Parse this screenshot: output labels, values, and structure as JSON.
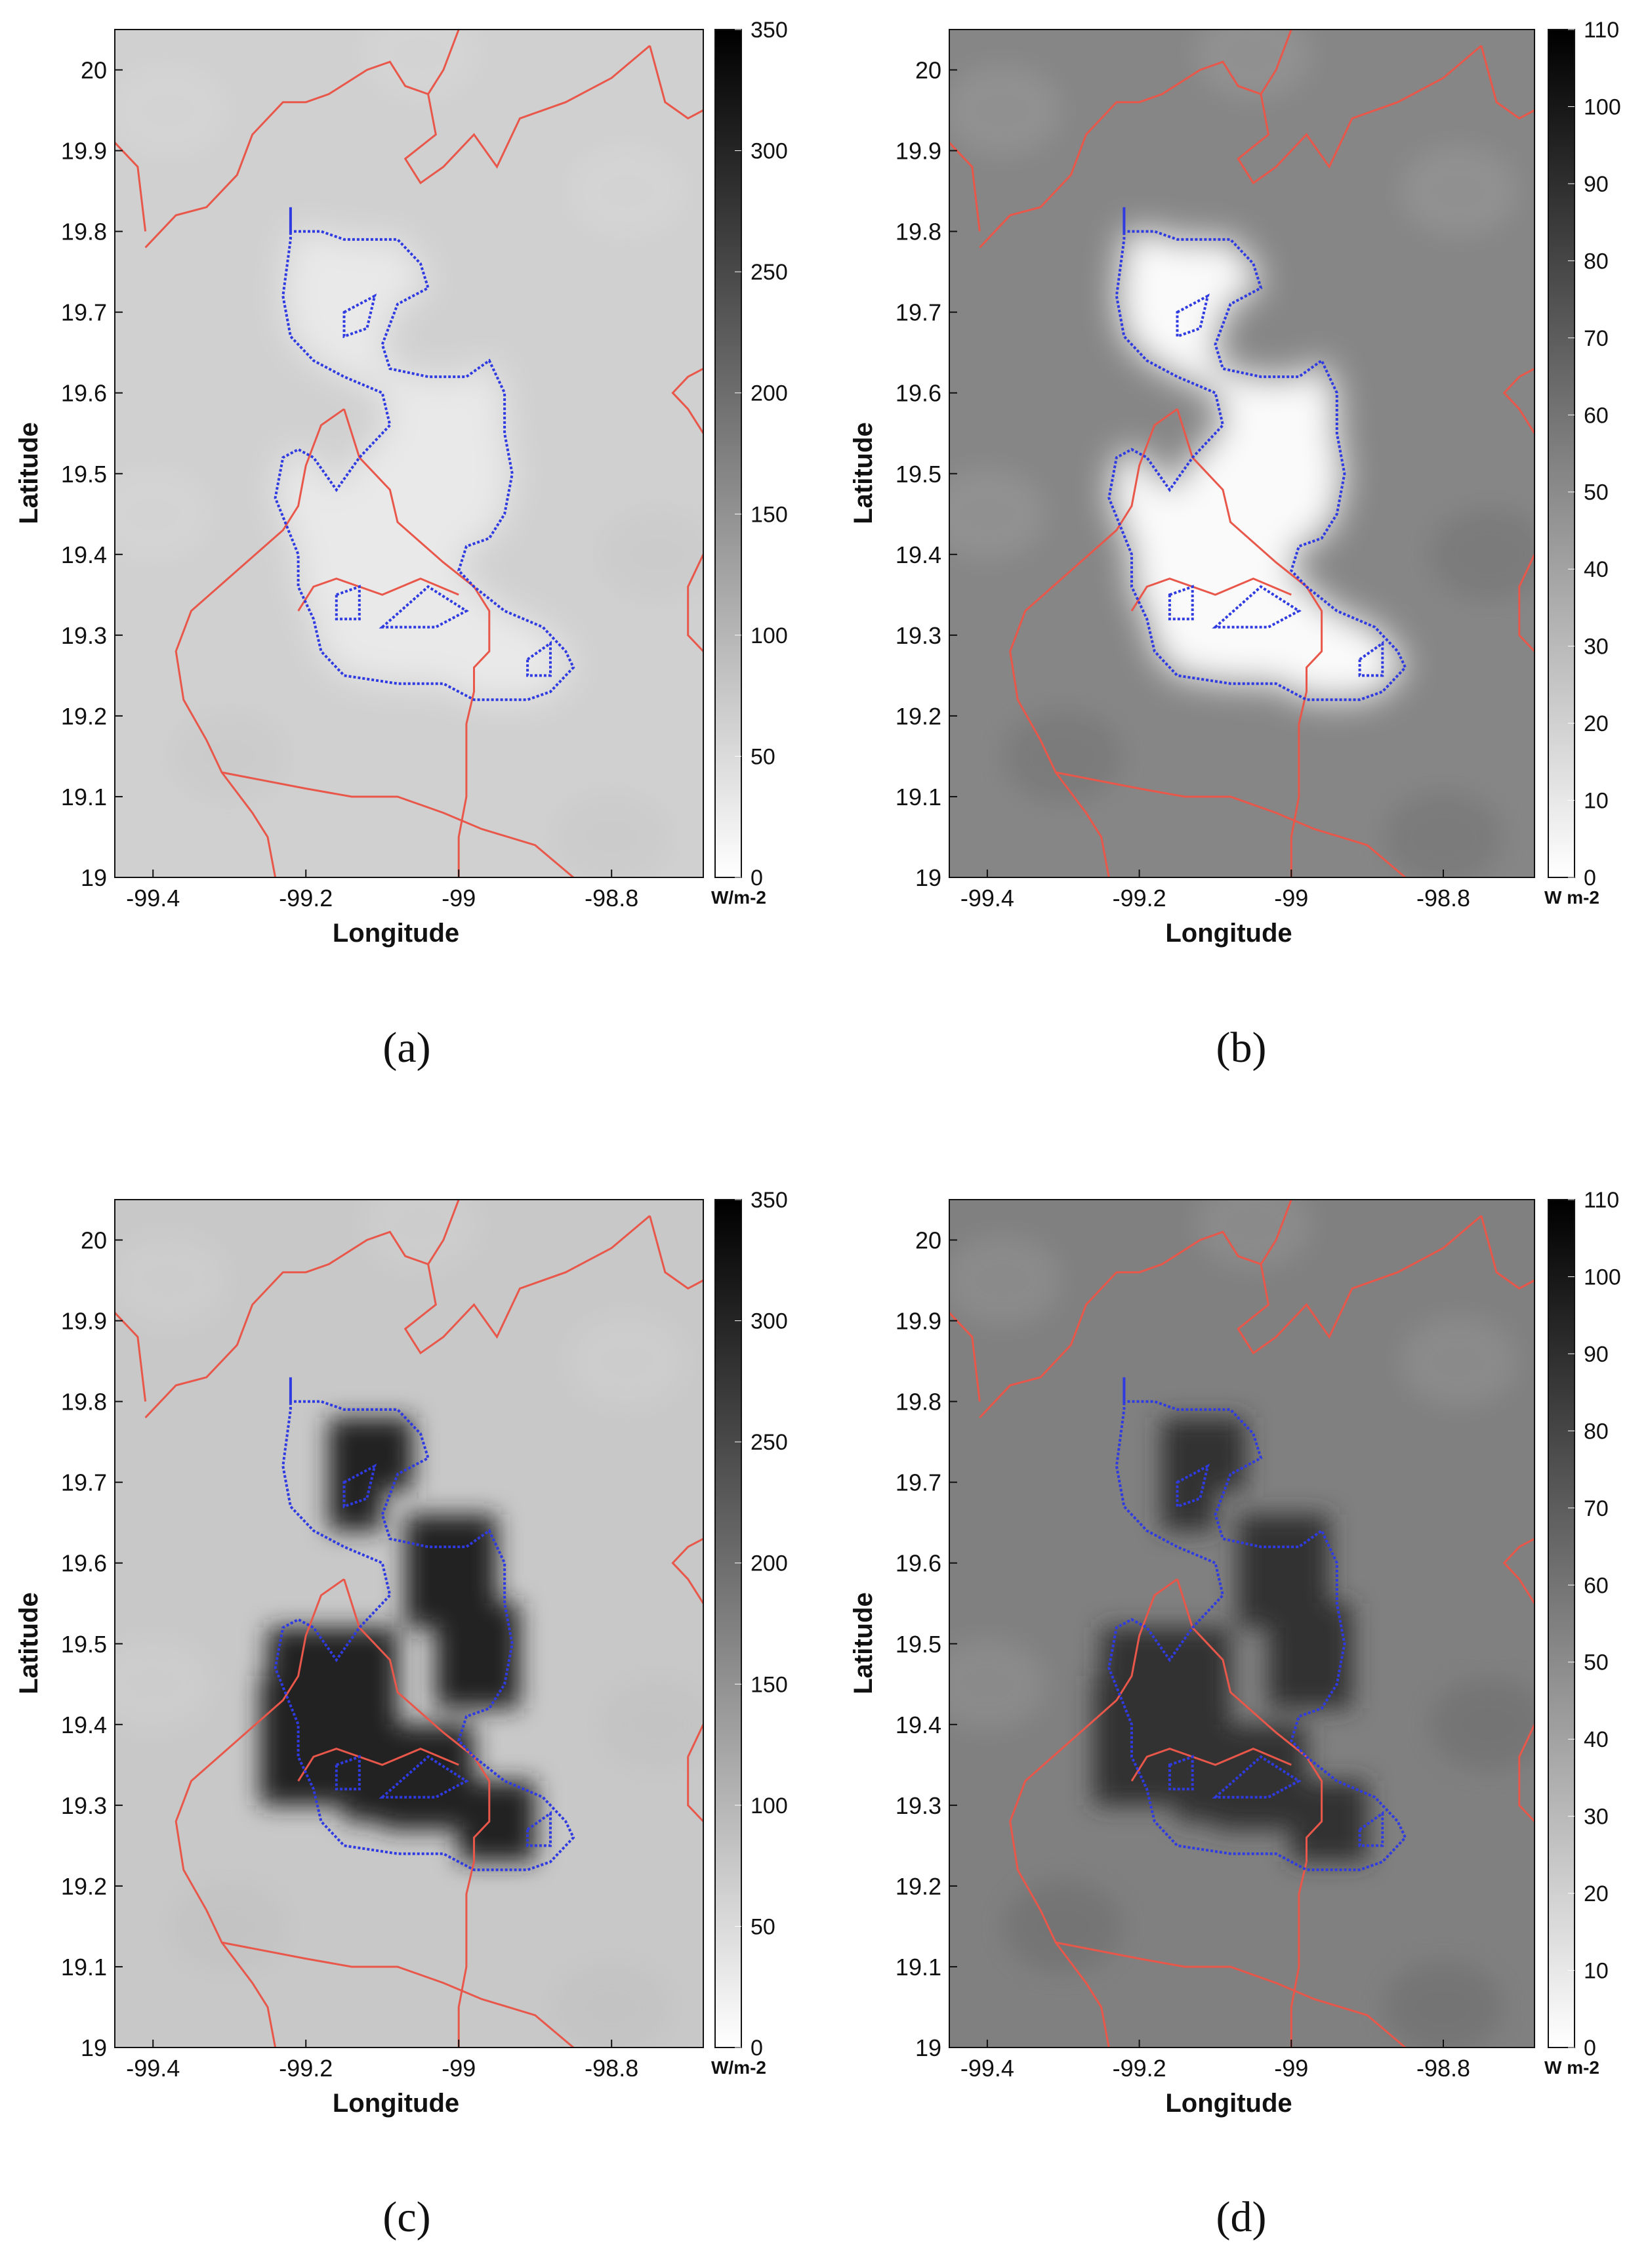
{
  "colors": {
    "boundary": "#e8574a",
    "city_outline": "#2f3be0",
    "axis": "#111111"
  },
  "chart_data": [
    {
      "type": "heatmap",
      "panel": "(a)",
      "xlabel": "Longitude",
      "ylabel": "Latitude",
      "xlim": [
        -99.45,
        -98.68
      ],
      "ylim": [
        19.0,
        20.05
      ],
      "xticks": [
        -99.4,
        -99.2,
        -99.0,
        -98.8
      ],
      "xtick_labels": [
        "-99.4",
        "-99.2",
        "-99",
        "-98.8"
      ],
      "yticks": [
        19.0,
        19.1,
        19.2,
        19.3,
        19.4,
        19.5,
        19.6,
        19.7,
        19.8,
        19.9,
        20.0
      ],
      "ytick_labels": [
        "19",
        "19.1",
        "19.2",
        "19.3",
        "19.4",
        "19.5",
        "19.6",
        "19.7",
        "19.8",
        "19.9",
        "20"
      ],
      "colorbar": {
        "min": 0,
        "max": 350,
        "ticks": [
          0,
          50,
          100,
          150,
          200,
          250,
          300,
          350
        ],
        "unit": "W/m-2"
      },
      "background_value": 65,
      "urban_value": 30,
      "urban_shape": "outline",
      "grid": false
    },
    {
      "type": "heatmap",
      "panel": "(b)",
      "xlabel": "Longitude",
      "ylabel": "Latitude",
      "xlim": [
        -99.45,
        -98.68
      ],
      "ylim": [
        19.0,
        20.05
      ],
      "xticks": [
        -99.4,
        -99.2,
        -99.0,
        -98.8
      ],
      "xtick_labels": [
        "-99.4",
        "-99.2",
        "-99",
        "-98.8"
      ],
      "yticks": [
        19.0,
        19.1,
        19.2,
        19.3,
        19.4,
        19.5,
        19.6,
        19.7,
        19.8,
        19.9,
        20.0
      ],
      "ytick_labels": [
        "19",
        "19.1",
        "19.2",
        "19.3",
        "19.4",
        "19.5",
        "19.6",
        "19.7",
        "19.8",
        "19.9",
        "20"
      ],
      "colorbar": {
        "min": 0,
        "max": 110,
        "ticks": [
          0,
          10,
          20,
          30,
          40,
          50,
          60,
          70,
          80,
          90,
          100,
          110
        ],
        "unit": "W m-2"
      },
      "background_value": 52,
      "urban_value": 2,
      "urban_shape": "outline",
      "grid": false
    },
    {
      "type": "heatmap",
      "panel": "(c)",
      "xlabel": "Longitude",
      "ylabel": "Latitude",
      "xlim": [
        -99.45,
        -98.68
      ],
      "ylim": [
        19.0,
        20.05
      ],
      "xticks": [
        -99.4,
        -99.2,
        -99.0,
        -98.8
      ],
      "xtick_labels": [
        "-99.4",
        "-99.2",
        "-99",
        "-98.8"
      ],
      "yticks": [
        19.0,
        19.1,
        19.2,
        19.3,
        19.4,
        19.5,
        19.6,
        19.7,
        19.8,
        19.9,
        20.0
      ],
      "ytick_labels": [
        "19",
        "19.1",
        "19.2",
        "19.3",
        "19.4",
        "19.5",
        "19.6",
        "19.7",
        "19.8",
        "19.9",
        "20"
      ],
      "colorbar": {
        "min": 0,
        "max": 350,
        "ticks": [
          0,
          50,
          100,
          150,
          200,
          250,
          300,
          350
        ],
        "unit": "W/m-2"
      },
      "background_value": 75,
      "urban_value": 300,
      "urban_shape": "blocky",
      "grid": false
    },
    {
      "type": "heatmap",
      "panel": "(d)",
      "xlabel": "Longitude",
      "ylabel": "Latitude",
      "xlim": [
        -99.45,
        -98.68
      ],
      "ylim": [
        19.0,
        20.05
      ],
      "xticks": [
        -99.4,
        -99.2,
        -99.0,
        -98.8
      ],
      "xtick_labels": [
        "-99.4",
        "-99.2",
        "-99",
        "-98.8"
      ],
      "yticks": [
        19.0,
        19.1,
        19.2,
        19.3,
        19.4,
        19.5,
        19.6,
        19.7,
        19.8,
        19.9,
        20.0
      ],
      "ytick_labels": [
        "19",
        "19.1",
        "19.2",
        "19.3",
        "19.4",
        "19.5",
        "19.6",
        "19.7",
        "19.8",
        "19.9",
        "20"
      ],
      "colorbar": {
        "min": 0,
        "max": 110,
        "ticks": [
          0,
          10,
          20,
          30,
          40,
          50,
          60,
          70,
          80,
          90,
          100,
          110
        ],
        "unit": "W m-2"
      },
      "background_value": 55,
      "urban_value": 88,
      "urban_shape": "blocky",
      "grid": false
    }
  ]
}
